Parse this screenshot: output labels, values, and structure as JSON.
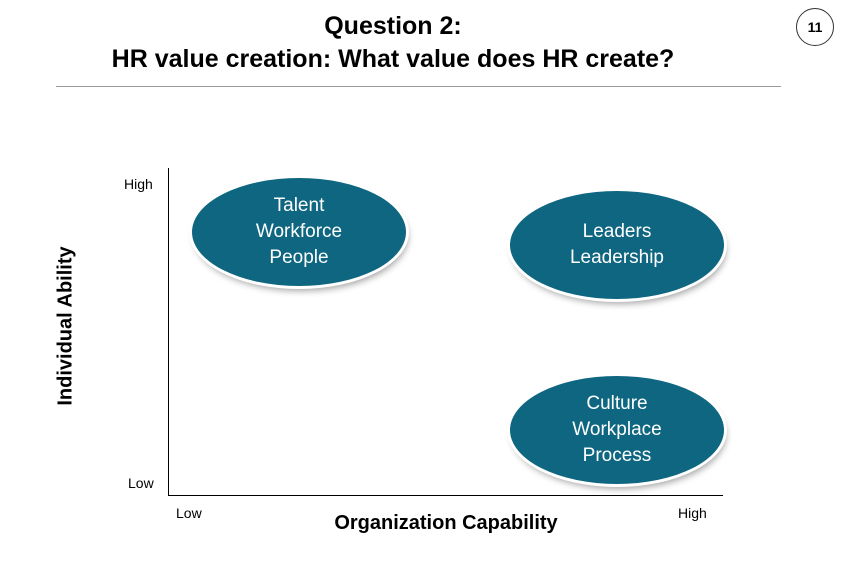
{
  "header": {
    "title_line1": "Question 2:",
    "title_line2": "HR value creation: What value does HR create?",
    "page_number": "11"
  },
  "diagram": {
    "y_axis": {
      "title": "Individual Ability",
      "high": "High",
      "low": "Low"
    },
    "x_axis": {
      "title": "Organization Capability",
      "low": "Low",
      "high": "High"
    },
    "quadrants": [
      {
        "position": "high ability, low capability",
        "lines": [
          "Talent",
          "Workforce",
          "People"
        ]
      },
      {
        "position": "high ability, high capability",
        "lines": [
          "Leaders",
          "Leadership"
        ]
      },
      {
        "position": "low ability, high capability",
        "lines": [
          "Culture",
          "Workplace",
          "Process"
        ]
      }
    ],
    "ellipse_color": "#0e6680"
  }
}
